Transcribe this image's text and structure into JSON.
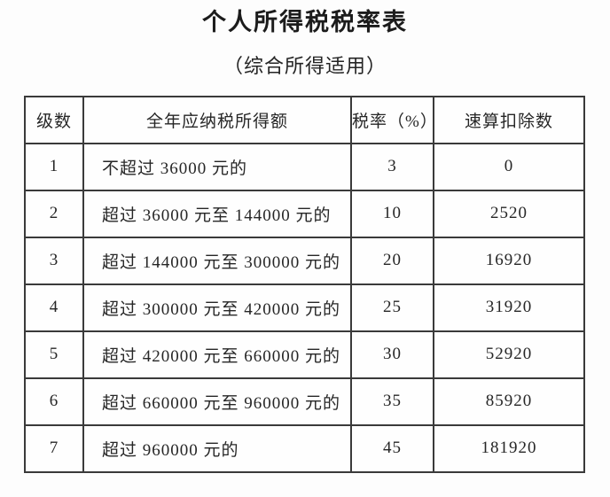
{
  "page": {
    "title": "个人所得税税率表",
    "subtitle": "（综合所得适用）"
  },
  "table": {
    "columns": [
      "级数",
      "全年应纳税所得额",
      "税率（%）",
      "速算扣除数"
    ],
    "rows": [
      {
        "level": "1",
        "income": "不超过 36000 元的",
        "rate": "3",
        "deduction": "0"
      },
      {
        "level": "2",
        "income": "超过 36000 元至 144000 元的",
        "rate": "10",
        "deduction": "2520"
      },
      {
        "level": "3",
        "income": "超过 144000 元至 300000 元的",
        "rate": "20",
        "deduction": "16920"
      },
      {
        "level": "4",
        "income": "超过 300000 元至 420000 元的",
        "rate": "25",
        "deduction": "31920"
      },
      {
        "level": "5",
        "income": "超过 420000 元至 660000 元的",
        "rate": "30",
        "deduction": "52920"
      },
      {
        "level": "6",
        "income": "超过 660000 元至 960000 元的",
        "rate": "35",
        "deduction": "85920"
      },
      {
        "level": "7",
        "income": "超过 960000 元的",
        "rate": "45",
        "deduction": "181920"
      }
    ]
  },
  "colors": {
    "text": "#262626",
    "border": "#3a3a3a",
    "background": "#fdfdfd"
  }
}
